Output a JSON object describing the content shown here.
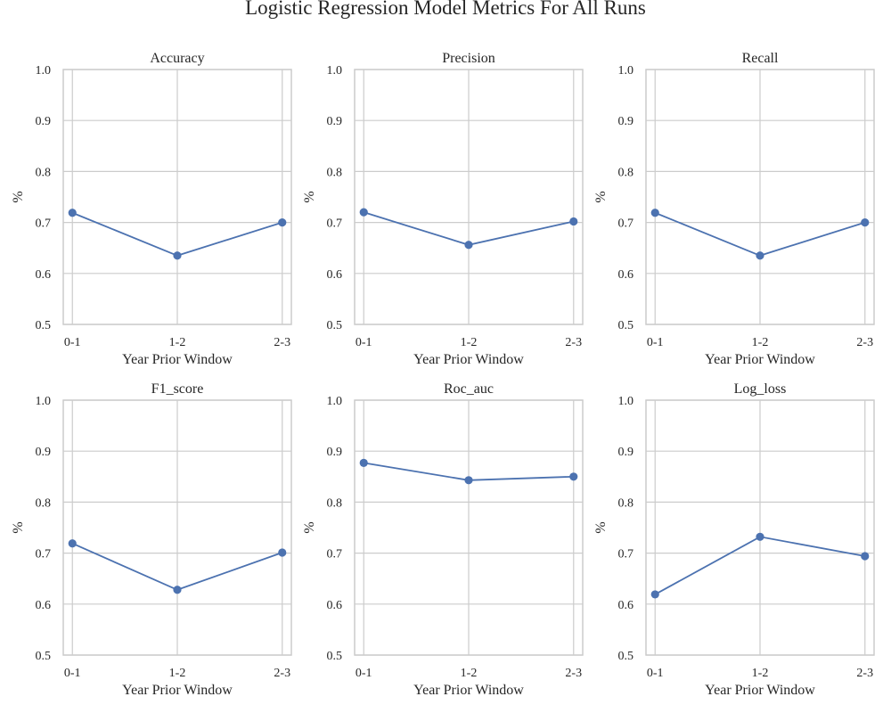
{
  "title": "Logistic Regression Model Metrics For All Runs",
  "chart_data": [
    {
      "type": "line",
      "title": "Accuracy",
      "xlabel": "Year Prior Window",
      "ylabel": "%",
      "categories": [
        "0-1",
        "1-2",
        "2-3"
      ],
      "values": [
        0.719,
        0.635,
        0.7
      ],
      "ylim": [
        0.5,
        1.0
      ],
      "yticks": [
        "0.5",
        "0.6",
        "0.7",
        "0.8",
        "0.9",
        "1.0"
      ],
      "grid": true,
      "color": "#4c72b0"
    },
    {
      "type": "line",
      "title": "Precision",
      "xlabel": "Year Prior Window",
      "ylabel": "%",
      "categories": [
        "0-1",
        "1-2",
        "2-3"
      ],
      "values": [
        0.72,
        0.656,
        0.702
      ],
      "ylim": [
        0.5,
        1.0
      ],
      "yticks": [
        "0.5",
        "0.6",
        "0.7",
        "0.8",
        "0.9",
        "1.0"
      ],
      "grid": true,
      "color": "#4c72b0"
    },
    {
      "type": "line",
      "title": "Recall",
      "xlabel": "Year Prior Window",
      "ylabel": "%",
      "categories": [
        "0-1",
        "1-2",
        "2-3"
      ],
      "values": [
        0.719,
        0.635,
        0.7
      ],
      "ylim": [
        0.5,
        1.0
      ],
      "yticks": [
        "0.5",
        "0.6",
        "0.7",
        "0.8",
        "0.9",
        "1.0"
      ],
      "grid": true,
      "color": "#4c72b0"
    },
    {
      "type": "line",
      "title": "F1_score",
      "xlabel": "Year Prior Window",
      "ylabel": "%",
      "categories": [
        "0-1",
        "1-2",
        "2-3"
      ],
      "values": [
        0.719,
        0.628,
        0.701
      ],
      "ylim": [
        0.5,
        1.0
      ],
      "yticks": [
        "0.5",
        "0.6",
        "0.7",
        "0.8",
        "0.9",
        "1.0"
      ],
      "grid": true,
      "color": "#4c72b0"
    },
    {
      "type": "line",
      "title": "Roc_auc",
      "xlabel": "Year Prior Window",
      "ylabel": "%",
      "categories": [
        "0-1",
        "1-2",
        "2-3"
      ],
      "values": [
        0.877,
        0.843,
        0.85
      ],
      "ylim": [
        0.5,
        1.0
      ],
      "yticks": [
        "0.5",
        "0.6",
        "0.7",
        "0.8",
        "0.9",
        "1.0"
      ],
      "grid": true,
      "color": "#4c72b0"
    },
    {
      "type": "line",
      "title": "Log_loss",
      "xlabel": "Year Prior Window",
      "ylabel": "%",
      "categories": [
        "0-1",
        "1-2",
        "2-3"
      ],
      "values": [
        0.619,
        0.732,
        0.694
      ],
      "ylim": [
        0.5,
        1.0
      ],
      "yticks": [
        "0.5",
        "0.6",
        "0.7",
        "0.8",
        "0.9",
        "1.0"
      ],
      "grid": true,
      "color": "#4c72b0"
    }
  ]
}
